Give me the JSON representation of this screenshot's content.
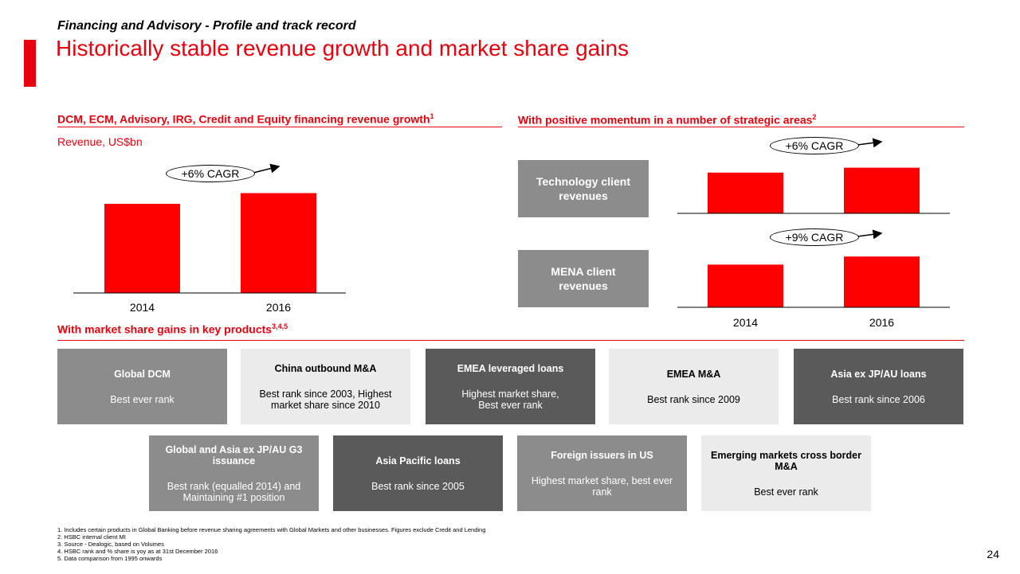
{
  "header": {
    "kicker": "Financing and Advisory - Profile and track record",
    "title": "Historically stable revenue growth and market share gains"
  },
  "left_section": {
    "heading": "DCM, ECM, Advisory, IRG, Credit and Equity financing revenue growth",
    "heading_note": "1",
    "units": "Revenue, US$bn",
    "cagr": "+6% CAGR"
  },
  "right_section": {
    "heading": "With positive momentum in a number of strategic areas",
    "heading_note": "2",
    "tech_label": "Technology client revenues",
    "tech_cagr": "+6% CAGR",
    "mena_label": "MENA client revenues",
    "mena_cagr": "+9% CAGR"
  },
  "chart_data": [
    {
      "type": "bar",
      "title": "DCM, ECM, Advisory, IRG, Credit and Equity financing revenue growth",
      "ylabel": "Revenue, US$bn",
      "categories": [
        "2014",
        "2016"
      ],
      "values": [
        1.0,
        1.12
      ],
      "ylim": [
        0,
        1.25
      ],
      "annotation": "+6% CAGR",
      "color": "#ff0000"
    },
    {
      "type": "bar",
      "title": "Technology client revenues",
      "categories": [
        "2014",
        "2016"
      ],
      "values": [
        1.0,
        1.12
      ],
      "ylim": [
        0,
        1.25
      ],
      "annotation": "+6% CAGR",
      "color": "#ff0000"
    },
    {
      "type": "bar",
      "title": "MENA client revenues",
      "categories": [
        "2014",
        "2016"
      ],
      "values": [
        1.0,
        1.19
      ],
      "ylim": [
        0,
        1.25
      ],
      "annotation": "+9% CAGR",
      "color": "#ff0000"
    }
  ],
  "products": {
    "heading": "With market share gains in key products",
    "heading_note": "3,4,5",
    "row1": [
      {
        "name": "Global DCM",
        "desc": "Best ever rank"
      },
      {
        "name": "China outbound M&A",
        "desc": "Best rank since 2003, Highest market share since 2010"
      },
      {
        "name": "EMEA leveraged loans",
        "desc": "Highest market share, Best ever rank"
      },
      {
        "name": "EMEA M&A",
        "desc": "Best rank since 2009"
      },
      {
        "name": "Asia ex JP/AU loans",
        "desc": "Best rank since 2006"
      }
    ],
    "row2": [
      {
        "name": "Global and Asia ex JP/AU G3 issuance",
        "desc": "Best rank (equalled 2014) and Maintaining #1 position"
      },
      {
        "name": "Asia Pacific loans",
        "desc": "Best rank since 2005"
      },
      {
        "name": "Foreign issuers in US",
        "desc": "Highest market share, best ever rank"
      },
      {
        "name": "Emerging markets cross border M&A",
        "desc": "Best ever rank"
      }
    ]
  },
  "footnotes": [
    "1.   Includes certain products in Global Banking before revenue sharing agreements with Global Markets and other businesses. Figures exclude Credit and Lending",
    "2.   HSBC internal client MI",
    "3.   Source - Dealogic, based on Volumes",
    "4.   HSBC rank and % share is yoy as at 31st December 2016",
    "5.   Data comparison from 1995 onwards"
  ],
  "page_number": "24",
  "colors": {
    "accent": "#e8000f",
    "bar": "#ff0000",
    "grey_mid": "#8c8c8c",
    "grey_dark": "#5a5a5a",
    "grey_light": "#ebebeb"
  }
}
